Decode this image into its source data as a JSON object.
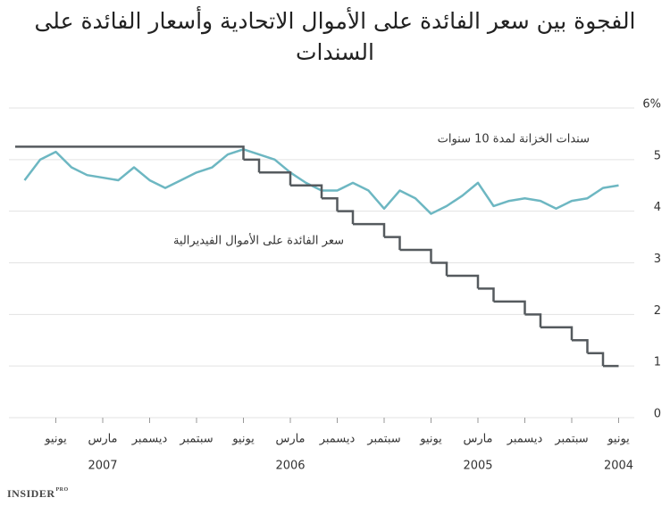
{
  "chart_data": {
    "type": "line",
    "title": "الفجوة بين سعر الفائدة على الأموال الاتحادية وأسعار الفائدة على السندات",
    "x": [
      "2004-06",
      "2004-07",
      "2004-08",
      "2004-09",
      "2004-10",
      "2004-11",
      "2004-12",
      "2005-01",
      "2005-02",
      "2005-03",
      "2005-04",
      "2005-05",
      "2005-06",
      "2005-07",
      "2005-08",
      "2005-09",
      "2005-10",
      "2005-11",
      "2005-12",
      "2006-01",
      "2006-02",
      "2006-03",
      "2006-04",
      "2006-05",
      "2006-06",
      "2006-07",
      "2006-08",
      "2006-09",
      "2006-10",
      "2006-11",
      "2006-12",
      "2007-01",
      "2007-02",
      "2007-03",
      "2007-04",
      "2007-05",
      "2007-06",
      "2007-07",
      "2007-08"
    ],
    "series": [
      {
        "name": "سندات الخزانة لمدة 10 سنوات",
        "color": "#6db7c2",
        "step": false,
        "values": [
          4.5,
          4.45,
          4.25,
          4.2,
          4.05,
          4.2,
          4.25,
          4.2,
          4.1,
          4.55,
          4.3,
          4.1,
          3.95,
          4.25,
          4.4,
          4.05,
          4.4,
          4.55,
          4.4,
          4.4,
          4.55,
          4.75,
          5.0,
          5.1,
          5.2,
          5.1,
          4.85,
          4.75,
          4.6,
          4.45,
          4.6,
          4.85,
          4.6,
          4.65,
          4.7,
          4.85,
          5.15,
          5.0,
          4.6
        ]
      },
      {
        "name": "سعر الفائدة على الأموال الفيديرالية",
        "color": "#555a5e",
        "step": true,
        "values": [
          1.0,
          1.25,
          1.5,
          1.75,
          1.75,
          2.0,
          2.25,
          2.25,
          2.5,
          2.75,
          2.75,
          3.0,
          3.25,
          3.25,
          3.5,
          3.75,
          3.75,
          4.0,
          4.25,
          4.5,
          4.5,
          4.75,
          4.75,
          5.0,
          5.25,
          5.25,
          5.25,
          5.25,
          5.25,
          5.25,
          5.25,
          5.25,
          5.25,
          5.25,
          5.25,
          5.25,
          5.25,
          5.25,
          5.25
        ]
      }
    ],
    "xlim": [
      "2004-05",
      "2007-09"
    ],
    "x_reversed": true,
    "xticks": [
      {
        "value": "2004-06",
        "label": "يونيو"
      },
      {
        "value": "2004-09",
        "label": "سبتمبر"
      },
      {
        "value": "2004-12",
        "label": "ديسمبر"
      },
      {
        "value": "2005-03",
        "label": "مارس"
      },
      {
        "value": "2005-06",
        "label": "يونيو"
      },
      {
        "value": "2005-09",
        "label": "سبتمبر"
      },
      {
        "value": "2005-12",
        "label": "ديسمبر"
      },
      {
        "value": "2006-03",
        "label": "مارس"
      },
      {
        "value": "2006-06",
        "label": "يونيو"
      },
      {
        "value": "2006-09",
        "label": "سبتمبر"
      },
      {
        "value": "2006-12",
        "label": "ديسمبر"
      },
      {
        "value": "2007-03",
        "label": "مارس"
      },
      {
        "value": "2007-06",
        "label": "يونيو"
      }
    ],
    "year_labels": [
      {
        "value": "2004-06",
        "label": "2004"
      },
      {
        "value": "2005-03",
        "label": "2005"
      },
      {
        "value": "2006-03",
        "label": "2006"
      },
      {
        "value": "2007-03",
        "label": "2007"
      }
    ],
    "ylim": [
      0,
      6
    ],
    "yticks": [
      0,
      1,
      2,
      3,
      4,
      5,
      {
        "value": 6,
        "label": "6%"
      }
    ],
    "grid": true,
    "y_axis_side": "right"
  },
  "logo": {
    "text": "INSIDER",
    "badge": "PRO"
  }
}
